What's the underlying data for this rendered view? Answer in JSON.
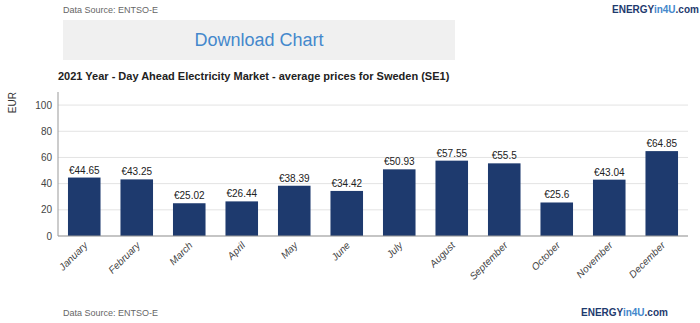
{
  "chart_data": {
    "type": "bar",
    "title": "2021 Year - Day Ahead Electricity Market - average prices for Sweden (SE1)",
    "y_label": "EUR",
    "categories": [
      "January",
      "February",
      "March",
      "April",
      "May",
      "June",
      "July",
      "August",
      "September",
      "October",
      "November",
      "December"
    ],
    "values": [
      44.65,
      43.25,
      25.02,
      26.44,
      38.39,
      34.42,
      50.93,
      57.55,
      55.5,
      25.6,
      43.04,
      64.85
    ],
    "value_labels": [
      "€44.65",
      "€43.25",
      "€25.02",
      "€26.44",
      "€38.39",
      "€34.42",
      "€50.93",
      "€57.55",
      "€55.5",
      "€25.6",
      "€43.04",
      "€64.85"
    ],
    "color": "#1e3a6e",
    "ylim": [
      0,
      110
    ],
    "yticks": [
      0,
      20,
      40,
      60,
      80,
      100
    ],
    "grid": true,
    "data_labels": true,
    "annotations": [
      {
        "text": "Download Chart",
        "color": "#4488cc"
      },
      {
        "text": "Data Source: ENTSO-E",
        "color": "#666666"
      },
      {
        "text": "ENERGY",
        "color": "#1e3a6e"
      },
      {
        "text": "in4U",
        "color": "#4488cc"
      },
      {
        "text": ".com",
        "color": "#1e3a6e"
      },
      {
        "text": "Data Source: ENTSO-E",
        "color": "#666666"
      },
      {
        "text": "ENERGY",
        "color": "#1e3a6e"
      },
      {
        "text": "in4U",
        "color": "#4488cc"
      },
      {
        "text": ".com",
        "color": "#1e3a6e"
      }
    ]
  }
}
